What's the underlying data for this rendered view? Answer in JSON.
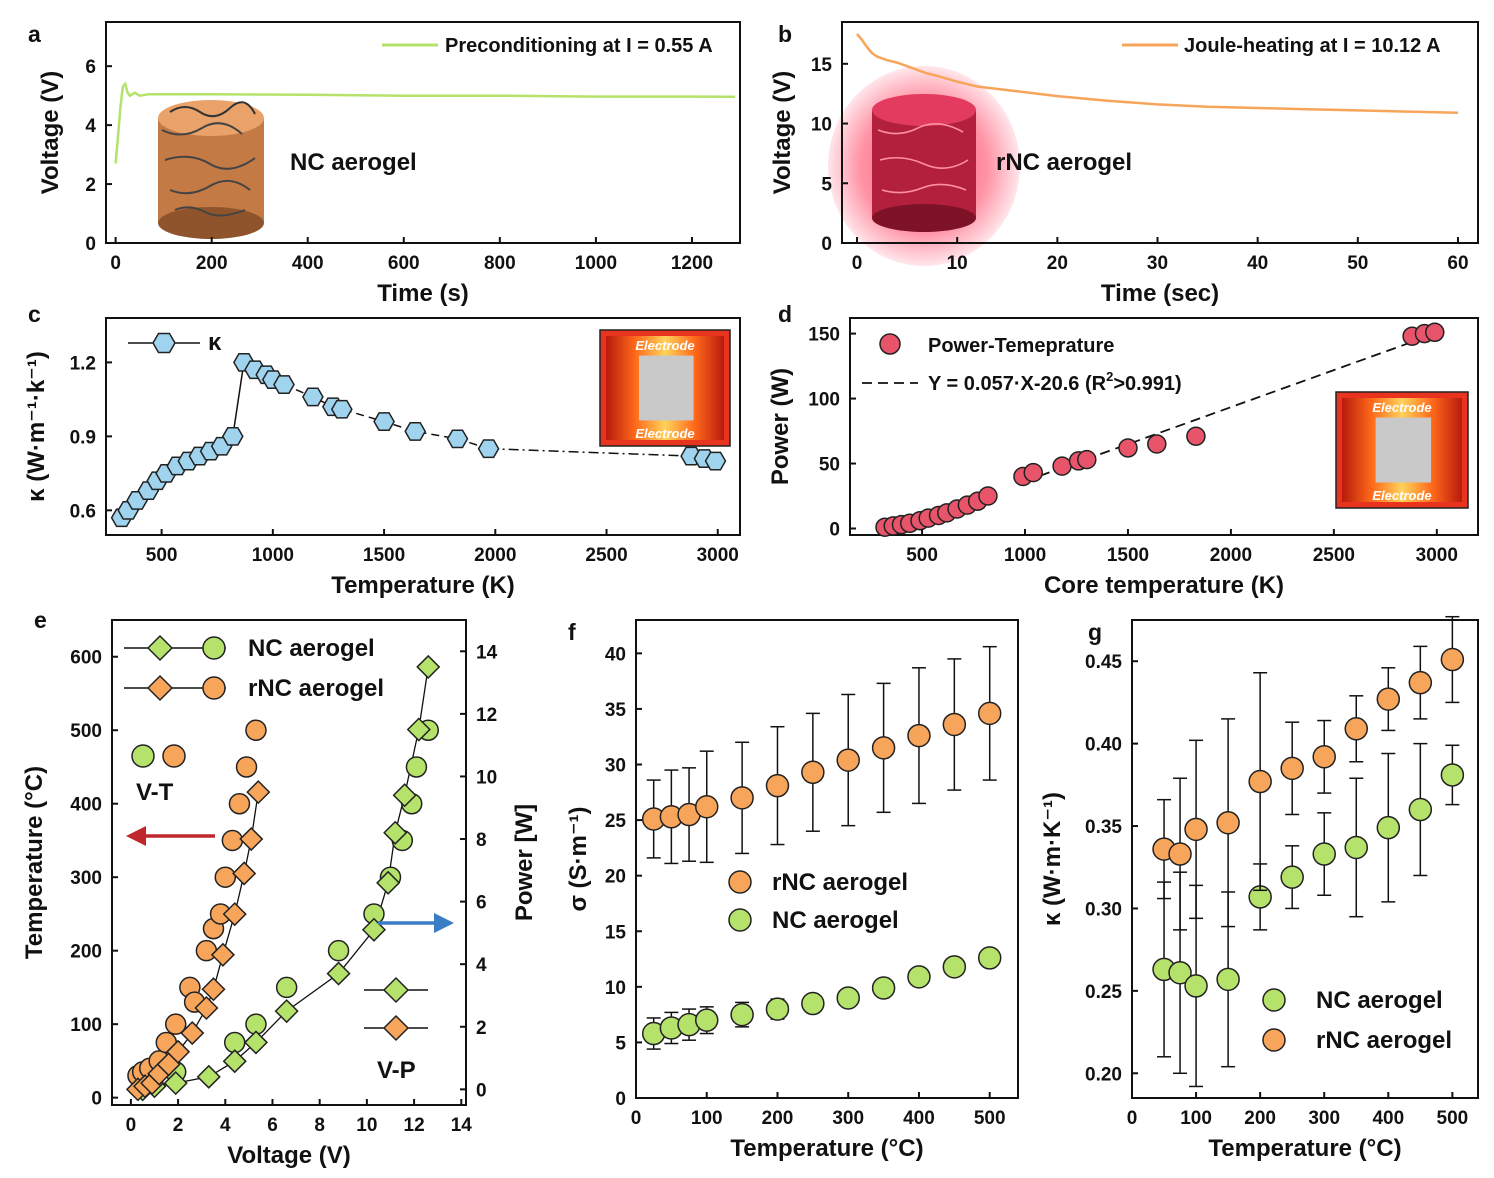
{
  "colors": {
    "green": "#b5e26a",
    "orange": "#f7a55b",
    "blue": "#9fd3ee",
    "red": "#e8546a",
    "dark": "#222222",
    "arrow_red": "#c0272d",
    "arrow_blue": "#3b7dc4",
    "inset_bg": "#e8331f",
    "inset_mid": "#c9c9c9"
  },
  "panels": {
    "a": {
      "label": "a"
    },
    "b": {
      "label": "b"
    },
    "c": {
      "label": "c"
    },
    "d": {
      "label": "d"
    },
    "e": {
      "label": "e"
    },
    "f": {
      "label": "f"
    },
    "g": {
      "label": "g"
    }
  },
  "chart_data": [
    {
      "id": "a",
      "type": "line",
      "title": "",
      "xlabel": "Time (s)",
      "ylabel": "Voltage (V)",
      "xlim": [
        -20,
        1300
      ],
      "ylim": [
        0,
        7.5
      ],
      "xticks": [
        0,
        200,
        400,
        600,
        800,
        1000,
        1200
      ],
      "yticks": [
        0,
        2,
        4,
        6
      ],
      "legend": "Preconditioning at I = 0.55 A",
      "annotation": "NC aerogel",
      "series": [
        {
          "name": "Preconditioning at I = 0.55 A",
          "x": [
            0,
            5,
            10,
            15,
            20,
            25,
            30,
            40,
            50,
            70,
            100,
            200,
            400,
            600,
            800,
            1000,
            1200,
            1290
          ],
          "y": [
            2.7,
            3.6,
            4.6,
            5.3,
            5.4,
            5.1,
            5.0,
            5.1,
            5.0,
            5.05,
            5.05,
            5.05,
            5.03,
            5.0,
            5.0,
            4.97,
            4.97,
            4.96
          ]
        }
      ]
    },
    {
      "id": "b",
      "type": "line",
      "xlabel": "Time (sec)",
      "ylabel": "Voltage (V)",
      "xlim": [
        -1.5,
        62
      ],
      "ylim": [
        0,
        18.5
      ],
      "xticks": [
        0,
        10,
        20,
        30,
        40,
        50,
        60
      ],
      "yticks": [
        0,
        5,
        10,
        15
      ],
      "legend": "Joule-heating at I = 10.12 A",
      "annotation": "rNC aerogel",
      "series": [
        {
          "name": "Joule-heating at I = 10.12 A",
          "x": [
            0,
            0.5,
            1,
            1.5,
            2,
            3,
            4,
            5,
            6,
            7,
            8,
            10,
            12,
            15,
            20,
            25,
            30,
            35,
            40,
            45,
            50,
            55,
            60
          ],
          "y": [
            17.5,
            17.0,
            16.4,
            15.9,
            15.6,
            15.3,
            15.1,
            14.8,
            14.5,
            14.2,
            14.0,
            13.5,
            13.1,
            12.8,
            12.3,
            11.9,
            11.6,
            11.4,
            11.3,
            11.2,
            11.1,
            11.0,
            10.9
          ]
        }
      ]
    },
    {
      "id": "c",
      "type": "scatter",
      "xlabel": "Temperature (K)",
      "ylabel": "κ (W·m⁻¹·k⁻¹)",
      "xlim": [
        250,
        3100
      ],
      "ylim": [
        0.5,
        1.38
      ],
      "xticks": [
        500,
        1000,
        1500,
        2000,
        2500,
        3000
      ],
      "yticks": [
        0.6,
        0.9,
        1.2
      ],
      "legend": "κ",
      "inset_labels": [
        "Electrode",
        "Electrode"
      ],
      "series": [
        {
          "name": "κ",
          "x": [
            320,
            350,
            390,
            440,
            480,
            520,
            570,
            620,
            670,
            720,
            770,
            820,
            870,
            920,
            970,
            1000,
            1050,
            1180,
            1270,
            1310,
            1500,
            1640,
            1830,
            1970,
            2880,
            2940,
            2990
          ],
          "y": [
            0.57,
            0.6,
            0.64,
            0.68,
            0.72,
            0.75,
            0.78,
            0.8,
            0.82,
            0.84,
            0.86,
            0.9,
            1.2,
            1.17,
            1.15,
            1.13,
            1.11,
            1.06,
            1.02,
            1.01,
            0.96,
            0.92,
            0.89,
            0.85,
            0.82,
            0.81,
            0.8
          ]
        }
      ]
    },
    {
      "id": "d",
      "type": "scatter",
      "xlabel": "Core temperature (K)",
      "ylabel": "Power (W)",
      "xlim": [
        150,
        3200
      ],
      "ylim": [
        -5,
        162
      ],
      "xticks": [
        500,
        1000,
        1500,
        2000,
        2500,
        3000
      ],
      "yticks": [
        0,
        50,
        100,
        150
      ],
      "legend": "Power-Temeprature",
      "fit": {
        "text": "Y = 0.057·X-20.6 (R",
        "sup": "2",
        "tail": ">0.991)",
        "slope": 0.057,
        "intercept": -20.6
      },
      "inset_labels": [
        "Electrode",
        "Electrode"
      ],
      "series": [
        {
          "name": "Power-Temeprature",
          "x": [
            320,
            360,
            400,
            440,
            490,
            530,
            580,
            620,
            670,
            720,
            770,
            820,
            990,
            1040,
            1180,
            1260,
            1300,
            1500,
            1640,
            1830,
            2880,
            2940,
            2990
          ],
          "y": [
            1,
            2,
            3,
            4,
            6,
            8,
            10,
            12,
            15,
            18,
            21,
            25,
            40,
            43,
            48,
            52,
            53,
            62,
            65,
            71,
            148,
            150,
            151
          ]
        }
      ]
    },
    {
      "id": "e",
      "type": "scatter",
      "xlabel": "Voltage (V)",
      "ylabel": "Temperature (°C)",
      "y2label": "Power [W]",
      "xlim": [
        -0.8,
        14.2
      ],
      "ylim": [
        -10,
        650
      ],
      "y2lim": [
        -0.5,
        15.0
      ],
      "xticks": [
        0,
        2,
        4,
        6,
        8,
        10,
        12,
        14
      ],
      "yticks": [
        0,
        100,
        200,
        300,
        400,
        500,
        600
      ],
      "y2ticks": [
        0,
        2,
        4,
        6,
        8,
        10,
        12,
        14
      ],
      "legend": [
        "NC aerogel",
        "rNC aerogel"
      ],
      "labels": [
        "V-T",
        "V-P"
      ],
      "series": [
        {
          "name": "NC aerogel V-T",
          "x": [
            0.5,
            1.0,
            1.9,
            4.4,
            5.3,
            6.6,
            8.8,
            10.3,
            11.0,
            11.5,
            11.9,
            12.1,
            12.6
          ],
          "y": [
            30,
            30,
            35,
            75,
            100,
            150,
            200,
            250,
            300,
            350,
            400,
            450,
            500
          ]
        },
        {
          "name": "rNC aerogel V-T",
          "x": [
            0.3,
            0.5,
            0.8,
            1.2,
            1.5,
            1.9,
            2.5,
            2.7,
            3.2,
            3.5,
            3.8,
            4.0,
            4.3,
            4.6,
            4.9,
            5.3
          ],
          "y": [
            30,
            35,
            40,
            50,
            75,
            100,
            150,
            130,
            200,
            230,
            250,
            300,
            350,
            400,
            450,
            500
          ]
        },
        {
          "name": "NC aerogel V-P",
          "x": [
            0.5,
            1.0,
            1.9,
            3.3,
            4.4,
            5.3,
            6.6,
            8.8,
            10.3,
            10.9,
            11.2,
            11.6,
            12.2,
            12.6
          ],
          "y": [
            0,
            0.1,
            0.2,
            0.4,
            0.9,
            1.5,
            2.5,
            3.7,
            5.1,
            6.6,
            8.2,
            9.4,
            11.5,
            13.5
          ]
        },
        {
          "name": "rNC aerogel V-P",
          "x": [
            0.3,
            0.6,
            0.9,
            1.2,
            1.6,
            2.0,
            2.6,
            3.2,
            3.5,
            3.9,
            4.4,
            4.8,
            5.1,
            5.4
          ],
          "y": [
            0,
            0.1,
            0.2,
            0.5,
            0.8,
            1.2,
            1.8,
            2.6,
            3.2,
            4.3,
            5.6,
            6.9,
            8.0,
            9.5
          ]
        }
      ]
    },
    {
      "id": "f",
      "type": "scatter",
      "xlabel": "Temperature (°C)",
      "ylabel": "σ (S·m⁻¹)",
      "xlim": [
        0,
        540
      ],
      "ylim": [
        0,
        43
      ],
      "xticks": [
        0,
        100,
        200,
        300,
        400,
        500
      ],
      "yticks": [
        0,
        5,
        10,
        15,
        20,
        25,
        30,
        35,
        40
      ],
      "legend": [
        "rNC aerogel",
        "NC aerogel"
      ],
      "series": [
        {
          "name": "rNC aerogel",
          "x": [
            25,
            50,
            75,
            100,
            150,
            200,
            250,
            300,
            350,
            400,
            450,
            500
          ],
          "y": [
            25.1,
            25.3,
            25.5,
            26.2,
            27.0,
            28.1,
            29.3,
            30.4,
            31.5,
            32.6,
            33.6,
            34.6
          ],
          "err": [
            3.5,
            4.2,
            4.2,
            5.0,
            5.0,
            5.3,
            5.3,
            5.9,
            5.8,
            6.1,
            5.9,
            6.0
          ]
        },
        {
          "name": "NC aerogel",
          "x": [
            25,
            50,
            75,
            100,
            150,
            200,
            250,
            300,
            350,
            400,
            450,
            500
          ],
          "y": [
            5.8,
            6.3,
            6.6,
            7.0,
            7.5,
            8.0,
            8.5,
            9.0,
            9.9,
            10.9,
            11.8,
            12.6
          ],
          "err": [
            1.4,
            1.4,
            1.4,
            1.2,
            1.1,
            0.9,
            0.6,
            0.5,
            0.7,
            0.7,
            0.7,
            0.6
          ]
        }
      ]
    },
    {
      "id": "g",
      "type": "scatter",
      "xlabel": "Temperature (°C)",
      "ylabel": "κ (W·m·K⁻¹)",
      "xlim": [
        0,
        540
      ],
      "ylim": [
        0.185,
        0.475
      ],
      "xticks": [
        0,
        100,
        200,
        300,
        400,
        500
      ],
      "yticks": [
        0.2,
        0.25,
        0.3,
        0.35,
        0.4,
        0.45
      ],
      "legend": [
        "NC aerogel",
        "rNC aerogel"
      ],
      "series": [
        {
          "name": "NC aerogel",
          "x": [
            50,
            75,
            100,
            150,
            200,
            250,
            300,
            350,
            400,
            450,
            500
          ],
          "y": [
            0.263,
            0.261,
            0.253,
            0.257,
            0.307,
            0.319,
            0.333,
            0.337,
            0.349,
            0.36,
            0.381
          ],
          "err": [
            0.053,
            0.061,
            0.061,
            0.053,
            0.02,
            0.019,
            0.025,
            0.042,
            0.045,
            0.04,
            0.018
          ]
        },
        {
          "name": "rNC aerogel",
          "x": [
            50,
            75,
            100,
            150,
            200,
            250,
            300,
            350,
            400,
            450,
            500
          ],
          "y": [
            0.336,
            0.333,
            0.348,
            0.352,
            0.377,
            0.385,
            0.392,
            0.409,
            0.427,
            0.437,
            0.451
          ],
          "err": [
            0.03,
            0.046,
            0.054,
            0.063,
            0.066,
            0.028,
            0.022,
            0.02,
            0.019,
            0.022,
            0.026
          ]
        }
      ]
    }
  ]
}
